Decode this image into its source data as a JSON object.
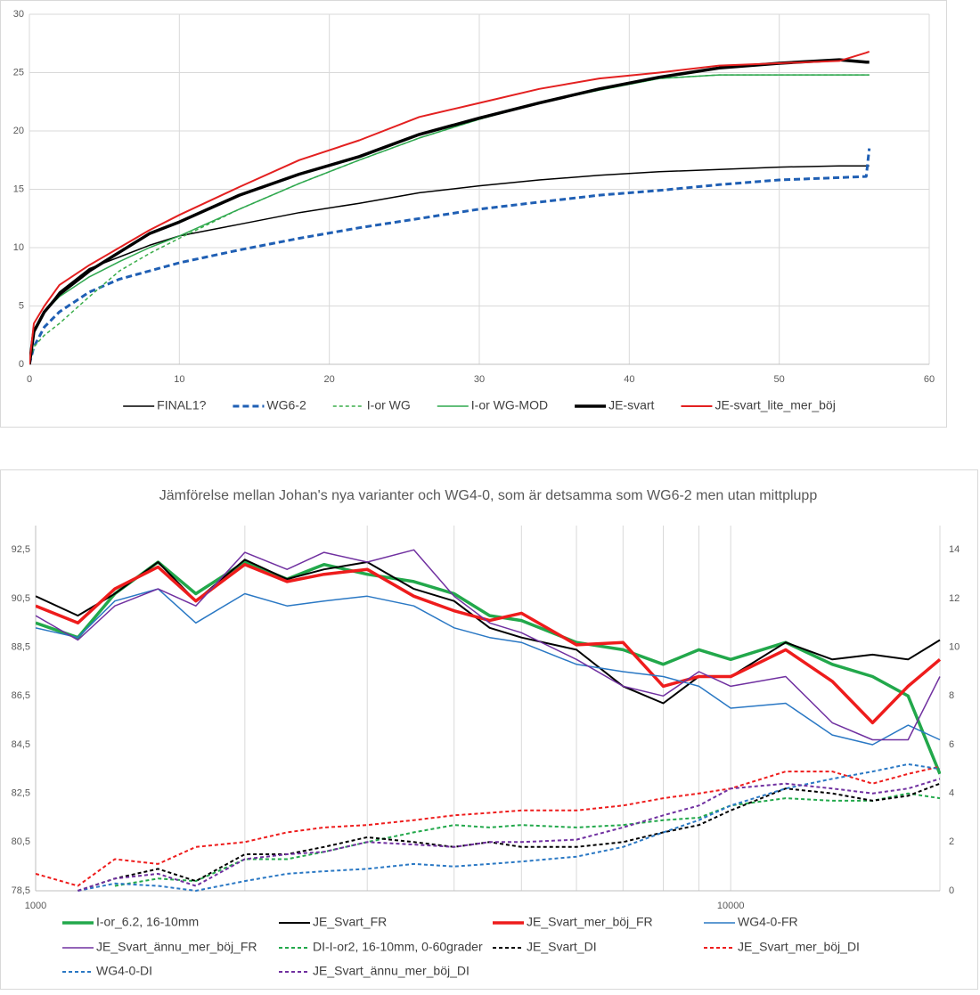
{
  "chart_data": [
    {
      "type": "line",
      "x": [
        0,
        0.3,
        1,
        2,
        4,
        6,
        8,
        10,
        14,
        18,
        22,
        26,
        30,
        34,
        38,
        42,
        46,
        50,
        54,
        55.8,
        56
      ],
      "xlim": [
        0,
        60
      ],
      "xticks": [
        0,
        10,
        20,
        30,
        40,
        50,
        60
      ],
      "ylim": [
        0,
        30
      ],
      "yticks": [
        0,
        5,
        10,
        15,
        20,
        25,
        30
      ],
      "grid": true,
      "series": [
        {
          "name": "FINAL1?",
          "color": "#000000",
          "width": 1.5,
          "dash": false,
          "values": [
            0,
            2.8,
            4.5,
            6.2,
            8.2,
            9.2,
            10.2,
            11.0,
            12.0,
            13.0,
            13.8,
            14.7,
            15.3,
            15.8,
            16.2,
            16.5,
            16.7,
            16.9,
            17.0,
            17.0,
            17.0
          ]
        },
        {
          "name": "WG6-2",
          "color": "#1f5fb4",
          "width": 3,
          "dash": true,
          "values": [
            0,
            1.5,
            3.2,
            4.5,
            6.2,
            7.3,
            8.0,
            8.7,
            9.8,
            10.8,
            11.7,
            12.5,
            13.3,
            13.9,
            14.5,
            14.9,
            15.4,
            15.8,
            16.0,
            16.1,
            18.5
          ]
        },
        {
          "name": "I-or WG",
          "color": "#3aae4a",
          "width": 1.5,
          "dash": true,
          "values": [
            0,
            1.5,
            2.5,
            3.5,
            5.8,
            8.0,
            9.5,
            10.8,
            13.3,
            15.5,
            17.5,
            19.4,
            21.0,
            22.4,
            23.5,
            24.5,
            24.8,
            24.8,
            24.8,
            24.8,
            24.8
          ]
        },
        {
          "name": "I-or WG-MOD",
          "color": "#2fa84f",
          "width": 1.5,
          "dash": false,
          "values": [
            0,
            3.0,
            4.5,
            5.8,
            7.5,
            8.8,
            10.0,
            11.0,
            13.3,
            15.5,
            17.5,
            19.4,
            21.0,
            22.4,
            23.5,
            24.5,
            24.8,
            24.8,
            24.8,
            24.8,
            24.8
          ]
        },
        {
          "name": "JE-svart",
          "color": "#000000",
          "width": 3.5,
          "dash": false,
          "values": [
            0,
            2.8,
            4.5,
            6.0,
            8.0,
            9.6,
            11.2,
            12.2,
            14.5,
            16.3,
            17.8,
            19.7,
            21.1,
            22.4,
            23.6,
            24.6,
            25.4,
            25.8,
            26.1,
            25.9,
            25.9
          ]
        },
        {
          "name": "JE-svart_lite_mer_böj",
          "color": "#e32020",
          "width": 2,
          "dash": false,
          "values": [
            0,
            3.5,
            5.0,
            6.8,
            8.5,
            10.0,
            11.5,
            12.8,
            15.2,
            17.5,
            19.2,
            21.2,
            22.4,
            23.6,
            24.5,
            25.0,
            25.6,
            25.8,
            26.0,
            26.7,
            26.8
          ]
        }
      ]
    },
    {
      "type": "line",
      "title": "Jämförelse mellan Johan's nya varianter och WG4-0, som är detsamma som WG6-2 men utan mittplupp",
      "xlog": true,
      "x": [
        1000,
        1150,
        1300,
        1500,
        1700,
        2000,
        2300,
        2600,
        3000,
        3500,
        4000,
        4500,
        5000,
        6000,
        7000,
        8000,
        9000,
        10000,
        12000,
        14000,
        16000,
        18000,
        20000
      ],
      "xlim": [
        1000,
        20000
      ],
      "xticks": [
        1000,
        10000
      ],
      "xgrid_minor": [
        2000,
        3000,
        4000,
        5000,
        6000,
        7000,
        8000,
        9000,
        20000
      ],
      "ylim": [
        78.5,
        93.5
      ],
      "yticks": [
        {
          "value": 78.5,
          "label": "78,5"
        },
        {
          "value": 80.5,
          "label": "80,5"
        },
        {
          "value": 82.5,
          "label": "82,5"
        },
        {
          "value": 84.5,
          "label": "84,5"
        },
        {
          "value": 86.5,
          "label": "86,5"
        },
        {
          "value": 88.5,
          "label": "88,5"
        },
        {
          "value": 90.5,
          "label": "90,5"
        },
        {
          "value": 92.5,
          "label": "92,5"
        }
      ],
      "y2lim": [
        0,
        15
      ],
      "y2ticks": [
        0,
        2,
        4,
        6,
        8,
        10,
        12,
        14
      ],
      "series": [
        {
          "name": "I-or_6.2, 16-10mm",
          "color": "#22a84b",
          "width": 3.5,
          "dash": false,
          "values": [
            89.5,
            88.9,
            90.7,
            92.0,
            90.7,
            92.0,
            91.3,
            91.9,
            91.5,
            91.2,
            90.7,
            89.8,
            89.6,
            88.7,
            88.4,
            87.8,
            88.4,
            88.0,
            88.7,
            87.8,
            87.3,
            86.5,
            83.3
          ]
        },
        {
          "name": "JE_Svart_FR",
          "color": "#000000",
          "width": 2,
          "dash": false,
          "values": [
            90.6,
            89.8,
            90.7,
            92.0,
            90.4,
            92.1,
            91.3,
            91.7,
            92.0,
            90.9,
            90.4,
            89.3,
            88.9,
            88.4,
            86.9,
            86.2,
            87.3,
            87.3,
            88.7,
            88.0,
            88.2,
            88.0,
            88.8
          ]
        },
        {
          "name": "JE_Svart_mer_böj_FR",
          "color": "#ee1c1c",
          "width": 3.5,
          "dash": false,
          "values": [
            90.2,
            89.5,
            90.9,
            91.8,
            90.4,
            91.9,
            91.2,
            91.5,
            91.7,
            90.6,
            90.0,
            89.6,
            89.9,
            88.6,
            88.7,
            86.9,
            87.3,
            87.3,
            88.4,
            87.1,
            85.4,
            86.9,
            88.0
          ]
        },
        {
          "name": "WG4-0-FR",
          "color": "#2a78c4",
          "width": 1.5,
          "dash": false,
          "values": [
            89.3,
            88.9,
            90.4,
            90.9,
            89.5,
            90.7,
            90.2,
            90.4,
            90.6,
            90.2,
            89.3,
            88.9,
            88.7,
            87.8,
            87.5,
            87.3,
            86.9,
            86.0,
            86.2,
            84.9,
            84.5,
            85.3,
            84.7
          ]
        },
        {
          "name": "JE_Svart_ännu_mer_böj_FR",
          "color": "#7030a0",
          "width": 1.5,
          "dash": false,
          "values": [
            89.8,
            88.8,
            90.2,
            90.9,
            90.2,
            92.4,
            91.7,
            92.4,
            92.0,
            92.5,
            90.6,
            89.5,
            89.1,
            88.0,
            86.9,
            86.5,
            87.5,
            86.9,
            87.3,
            85.4,
            84.7,
            84.7,
            87.3
          ]
        },
        {
          "name": "DI-I-or2, 16-10mm, 0-60grader",
          "color": "#22a84b",
          "width": 2,
          "dash": true,
          "axis": "y2",
          "values": [
            0.0,
            null,
            0.2,
            0.5,
            0.4,
            1.3,
            1.3,
            1.6,
            2.0,
            2.4,
            2.7,
            2.6,
            2.7,
            2.6,
            2.7,
            2.9,
            3.0,
            3.5,
            3.8,
            3.7,
            3.7,
            4.0,
            3.8
          ]
        },
        {
          "name": "JE_Svart_DI",
          "color": "#000000",
          "width": 2,
          "dash": true,
          "axis": "y2",
          "values": [
            null,
            0.0,
            0.5,
            0.9,
            0.4,
            1.5,
            1.5,
            1.8,
            2.2,
            2.0,
            1.8,
            2.0,
            1.8,
            1.8,
            2.0,
            2.4,
            2.7,
            3.3,
            4.2,
            4.0,
            3.7,
            3.9,
            4.4
          ]
        },
        {
          "name": "JE_Svart_mer_böj_DI",
          "color": "#ee1c1c",
          "width": 2,
          "dash": true,
          "axis": "y2",
          "values": [
            0.7,
            0.2,
            1.3,
            1.1,
            1.8,
            2.0,
            2.4,
            2.6,
            2.7,
            2.9,
            3.1,
            3.2,
            3.3,
            3.3,
            3.5,
            3.8,
            4.0,
            4.2,
            4.9,
            4.9,
            4.4,
            4.8,
            5.1
          ]
        },
        {
          "name": "WG4-0-DI",
          "color": "#2a78c4",
          "width": 2,
          "dash": true,
          "axis": "y2",
          "values": [
            null,
            0.0,
            0.3,
            0.2,
            0.0,
            0.4,
            0.7,
            0.8,
            0.9,
            1.1,
            1.0,
            1.1,
            1.2,
            1.4,
            1.8,
            2.4,
            2.9,
            3.5,
            4.2,
            4.6,
            4.9,
            5.2,
            5.0
          ]
        },
        {
          "name": "JE_Svart_ännu_mer_böj_DI",
          "color": "#7030a0",
          "width": 2,
          "dash": true,
          "axis": "y2",
          "values": [
            null,
            0.0,
            0.5,
            0.7,
            0.2,
            1.3,
            1.5,
            1.6,
            2.0,
            1.9,
            1.8,
            2.0,
            2.0,
            2.1,
            2.6,
            3.1,
            3.5,
            4.2,
            4.4,
            4.2,
            4.0,
            4.2,
            4.6
          ]
        }
      ]
    }
  ]
}
